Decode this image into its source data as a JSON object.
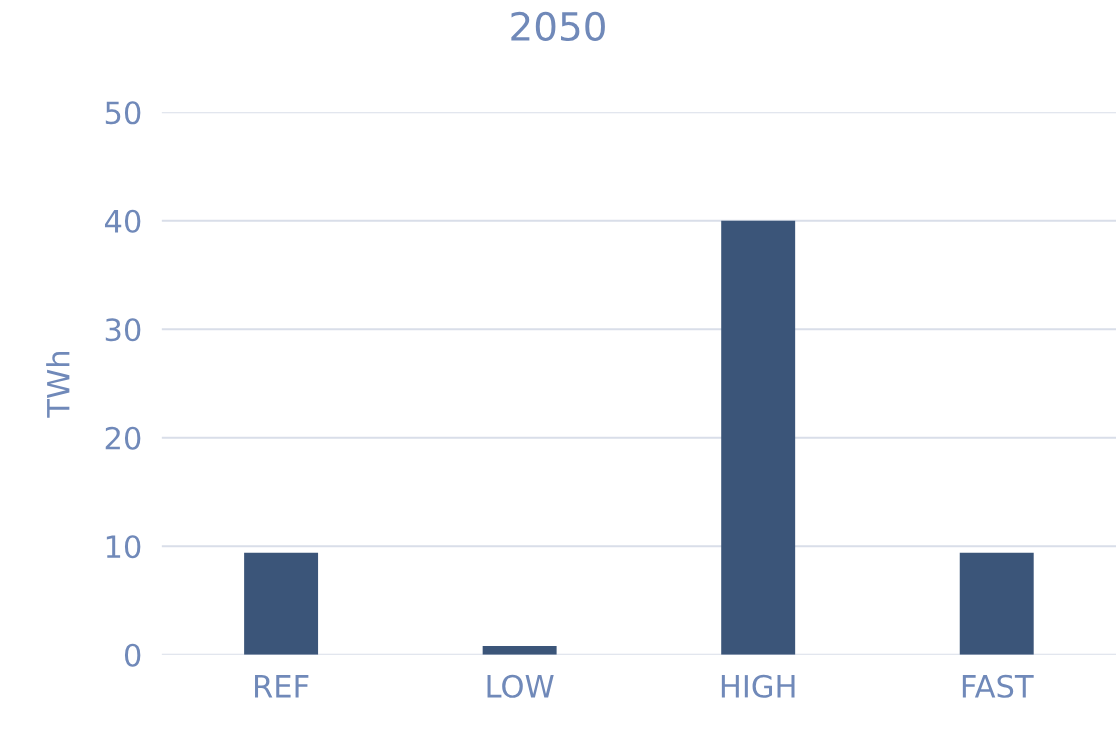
{
  "chart_data": {
    "type": "bar",
    "title": "2050",
    "ylabel": "TWh",
    "categories": [
      "REF",
      "LOW",
      "HIGH",
      "FAST"
    ],
    "values": [
      9.4,
      0.8,
      40.0,
      9.4
    ],
    "color": "#3b5579",
    "ylim": [
      0,
      50
    ],
    "yticks": [
      0,
      10,
      20,
      30,
      40,
      50
    ],
    "grid": "y"
  }
}
